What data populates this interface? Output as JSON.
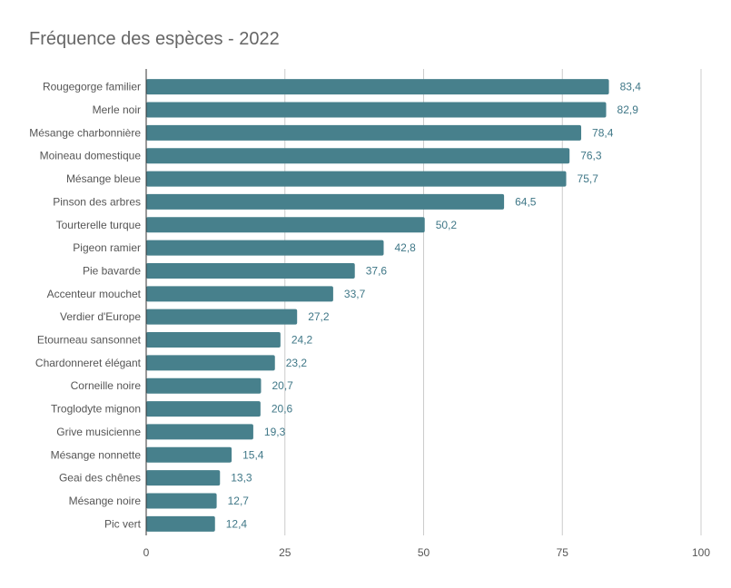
{
  "chart_data": {
    "type": "bar",
    "orientation": "horizontal",
    "title": "Fréquence des espèces - 2022",
    "categories": [
      "Rougegorge familier",
      "Merle noir",
      "Mésange charbonnière",
      "Moineau domestique",
      "Mésange bleue",
      "Pinson des arbres",
      "Tourterelle turque",
      "Pigeon ramier",
      "Pie bavarde",
      "Accenteur mouchet",
      "Verdier d'Europe",
      "Etourneau sansonnet",
      "Chardonneret élégant",
      "Corneille noire",
      "Troglodyte mignon",
      "Grive musicienne",
      "Mésange nonnette",
      "Geai des chênes",
      "Mésange noire",
      "Pic vert"
    ],
    "values": [
      83.4,
      82.9,
      78.4,
      76.3,
      75.7,
      64.5,
      50.2,
      42.8,
      37.6,
      33.7,
      27.2,
      24.2,
      23.2,
      20.7,
      20.6,
      19.3,
      15.4,
      13.3,
      12.7,
      12.4
    ],
    "value_labels": [
      "83,4",
      "82,9",
      "78,4",
      "76,3",
      "75,7",
      "64,5",
      "50,2",
      "42,8",
      "37,6",
      "33,7",
      "27,2",
      "24,2",
      "23,2",
      "20,7",
      "20,6",
      "19,3",
      "15,4",
      "13,3",
      "12,7",
      "12,4"
    ],
    "xlim": [
      0,
      100
    ],
    "xticks": [
      "0",
      "25",
      "50",
      "75",
      "100"
    ],
    "xlabel": "",
    "ylabel": "",
    "grid": true,
    "legend": "none",
    "colors": {
      "bar": "#47808c",
      "value_label": "#3f7787",
      "grid": "#cccccc",
      "axis": "#333333",
      "text": "#555555",
      "title": "#666666"
    }
  }
}
